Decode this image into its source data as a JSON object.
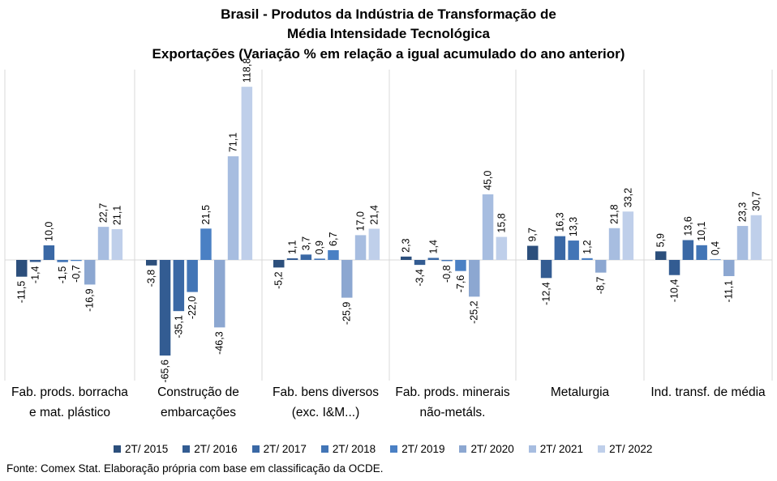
{
  "title_lines": [
    "Brasil - Produtos da Indústria de Transformação  de",
    "Média Intensidade Tecnológica",
    "Exportações (Variação % em relação a igual acumulado do ano anterior)"
  ],
  "source": "Fonte: Comex Stat. Elaboração própria com base em classificação da OCDE.",
  "chart_data": {
    "type": "bar",
    "categories": [
      [
        "Fab. prods. borracha",
        "e mat. plástico"
      ],
      [
        "Construção de",
        "embarcações"
      ],
      [
        "Fab. bens diversos",
        "(exc. I&M...)"
      ],
      [
        "Fab. prods. minerais",
        "não-metáls."
      ],
      [
        "Metalurgia"
      ],
      [
        "Ind. transf. de média"
      ]
    ],
    "series": [
      {
        "name": "2T/ 2015",
        "color": "#2c4f7c",
        "values": [
          -11.5,
          -3.8,
          -5.2,
          2.3,
          9.7,
          5.9
        ]
      },
      {
        "name": "2T/ 2016",
        "color": "#335c92",
        "values": [
          -1.4,
          -65.6,
          1.1,
          -3.4,
          -12.4,
          -10.4
        ]
      },
      {
        "name": "2T/ 2017",
        "color": "#3a68a5",
        "values": [
          10.0,
          -35.1,
          3.7,
          1.4,
          16.3,
          13.6
        ]
      },
      {
        "name": "2T/ 2018",
        "color": "#4275b6",
        "values": [
          -1.5,
          -22.0,
          0.9,
          -0.8,
          13.3,
          10.1
        ]
      },
      {
        "name": "2T/ 2019",
        "color": "#4a80c4",
        "values": [
          -0.7,
          21.5,
          6.7,
          -7.6,
          1.2,
          0.4
        ]
      },
      {
        "name": "2T/ 2020",
        "color": "#8ca7d1",
        "values": [
          -16.9,
          -46.3,
          -25.9,
          -25.2,
          -8.7,
          -11.1
        ]
      },
      {
        "name": "2T/ 2021",
        "color": "#a7bde0",
        "values": [
          22.7,
          71.1,
          17.0,
          45.0,
          21.8,
          23.3
        ]
      },
      {
        "name": "2T/ 2022",
        "color": "#bfcfea",
        "values": [
          21.1,
          118.8,
          21.4,
          15.8,
          33.2,
          30.7
        ]
      }
    ],
    "data_labels": [
      [
        "-11,5",
        "-1,4",
        "10,0",
        "-1,5",
        "-0,7",
        "-16,9",
        "22,7",
        "21,1"
      ],
      [
        "-3,8",
        "-65,6",
        "-35,1",
        "-22,0",
        "21,5",
        "-46,3",
        "71,1",
        "118,8"
      ],
      [
        "-5,2",
        "1,1",
        "3,7",
        "0,9",
        "6,7",
        "-25,9",
        "17,0",
        "21,4"
      ],
      [
        "2,3",
        "-3,4",
        "1,4",
        "-0,8",
        "-7,6",
        "-25,2",
        "45,0",
        "15,8"
      ],
      [
        "9,7",
        "-12,4",
        "16,3",
        "13,3",
        "1,2",
        "-8,7",
        "21,8",
        "33,2"
      ],
      [
        "5,9",
        "-10,4",
        "13,6",
        "10,1",
        "0,4",
        "-11,1",
        "23,3",
        "30,7"
      ]
    ],
    "ylim": [
      -75,
      125
    ],
    "grid": false,
    "legend_position": "bottom"
  }
}
